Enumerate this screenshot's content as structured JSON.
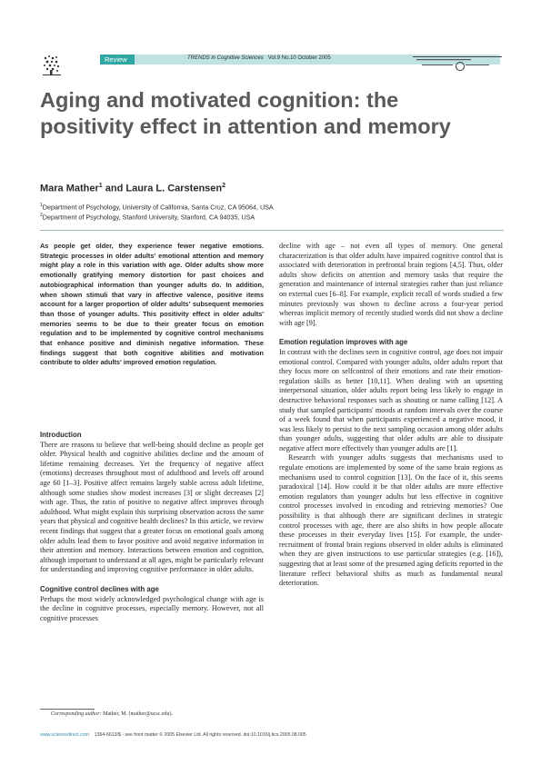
{
  "header": {
    "section_tag": "Review",
    "journal_name": "TRENDS in Cognitive Sciences",
    "journal_issue": "Vol.9 No.10 October 2005"
  },
  "article": {
    "title": "Aging and motivated cognition: the positivity effect in attention and memory",
    "author1": "Mara Mather",
    "author1_sup": "1",
    "author_join": " and ",
    "author2": "Laura L. Carstensen",
    "author2_sup": "2",
    "affiliation1_sup": "1",
    "affiliation1": "Department of Psychology, University of California, Santa Cruz, CA 95064, USA",
    "affiliation2_sup": "2",
    "affiliation2": "Department of Psychology, Stanford University, Stanford, CA 94035, USA"
  },
  "abstract": "As people get older, they experience fewer negative emotions. Strategic processes in older adults' emotional attention and memory might play a role in this variation with age. Older adults show more emotionally gratifying memory distortion for past choices and autobiographical information than younger adults do. In addition, when shown stimuli that vary in affective valence, positive items account for a larger proportion of older adults' subsequent memories than those of younger adults. This positivity effect in older adults' memories seems to be due to their greater focus on emotion regulation and to be implemented by cognitive control mechanisms that enhance positive and diminish negative information. These findings suggest that both cognitive abilities and motivation contribute to older adults' improved emotion regulation.",
  "left_column": {
    "intro_heading": "Introduction",
    "intro": "There are reasons to believe that well-being should decline as people get older. Physical health and cognitive abilities decline and the amount of lifetime remaining decreases. Yet the frequency of negative affect (emotions) decreases throughout most of adulthood and levels off around age 60 [1–3]. Positive affect remains largely stable across adult lifetime, although some studies show modest increases [3] or slight decreases [2] with age. Thus, the ratio of positive to negative affect improves through adulthood. What might explain this surprising observation across the same years that physical and cognitive health declines? In this article, we review recent findings that suggest that a greater focus on emotional goals among older adults lead them to favor positive and avoid negative information in their attention and memory. Interactions between emotion and cognition, although important to understand at all ages, might be particularly relevant for understanding and improving cognitive performance in older adults.",
    "control_heading": "Cognitive control declines with age",
    "control": "Perhaps the most widely acknowledged psychological change with age is the decline in cognitive processes, especially memory. However, not all cognitive processes"
  },
  "right_column": {
    "continued": "decline with age – not even all types of memory. One general characterization is that older adults have impaired cognitive control that is associated with deterioration in prefrontal brain regions [4,5]. Thus, older adults show deficits on attention and memory tasks that require the generation and maintenance of internal strategies rather than just reliance on external cues [6–8]. For example, explicit recall of words studied a few minutes previously was shown to decline across a four-year period whereas implicit memory of recently studied words did not show a decline with age [9].",
    "emotion_heading": "Emotion regulation improves with age",
    "emotion_p1": "In contrast with the declines seen in cognitive control, age does not impair emotional control. Compared with younger adults, older adults report that they focus more on selfcontrol of their emotions and rate their emotion-regulation skills as better [10,11]. When dealing with an upsetting interpersonal situation, older adults report being less likely to engage in destructive behavioral responses such as shouting or name calling [12]. A study that sampled participants' moods at random intervals over the course of a week found that when participants experienced a negative mood, it was less likely to persist to the next sampling occasion among older adults than younger adults, suggesting that older adults are able to dissipate negative affect more effectively than younger adults are [1].",
    "emotion_p2": "Research with younger adults suggests that mechanisms used to regulate emotions are implemented by some of the same brain regions as mechanisms used to control cognition [13]. On the face of it, this seems paradoxical [14]. How could it be that older adults are more effective emotion regulators than younger adults but less effective in cognitive control processes involved in encoding and retrieving memories? One possibility is that although there are significant declines in strategic control processes with age, there are also shifts in how people allocate these processes in their everyday lives [15]. For example, the under-recruitment of frontal brain regions observed in older adults is eliminated when they are given instructions to use particular strategies (e.g. [16]), suggesting that at least some of the presumed aging deficits reported in the literature reflect behavioral shifts as much as fundamental neural deterioration."
  },
  "footnote": {
    "label": "Corresponding author:",
    "text": " Mather, M. (mather@ucsc.edu)."
  },
  "footer": {
    "url": "www.sciencedirect.com",
    "info": "1364-6613/$ - see front matter © 2005 Elsevier Ltd. All rights reserved. doi:10.1016/j.tics.2005.08.005"
  },
  "colors": {
    "accent_teal": "#2fa7a3",
    "header_bar": "#bfe3e2",
    "title_gray": "#5a5a5a",
    "link_blue": "#2f8fa8"
  }
}
